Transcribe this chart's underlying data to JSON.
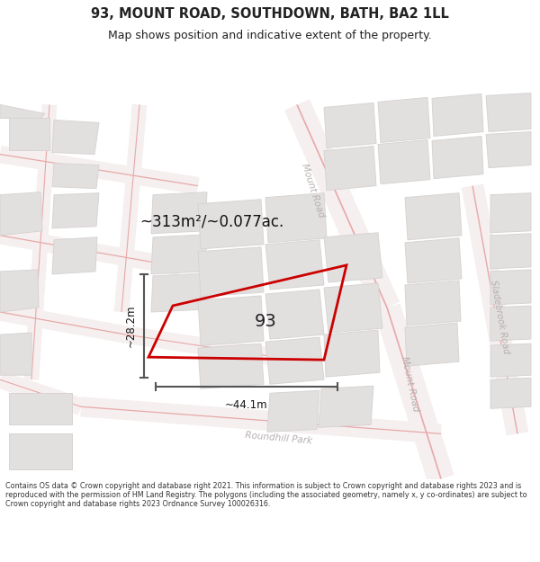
{
  "title": "93, MOUNT ROAD, SOUTHDOWN, BATH, BA2 1LL",
  "subtitle": "Map shows position and indicative extent of the property.",
  "footer": "Contains OS data © Crown copyright and database right 2021. This information is subject to Crown copyright and database rights 2023 and is reproduced with the permission of HM Land Registry. The polygons (including the associated geometry, namely x, y co-ordinates) are subject to Crown copyright and database rights 2023 Ordnance Survey 100026316.",
  "area_text": "~313m²/~0.077ac.",
  "width_label": "~44.1m",
  "height_label": "~28.2m",
  "plot_number": "93",
  "map_bg": "#f7f5f5",
  "road_color": "#e8a8a8",
  "block_color": "#e2dfdf",
  "block_edge": "#d8d4d4",
  "highlight_color": "#cc0000",
  "dim_line_color": "#555555",
  "road_label_color": "#b8b0b0",
  "title_color": "#222222",
  "footer_color": "#333333",
  "title_fontsize": 10.5,
  "subtitle_fontsize": 9,
  "footer_fontsize": 5.8
}
